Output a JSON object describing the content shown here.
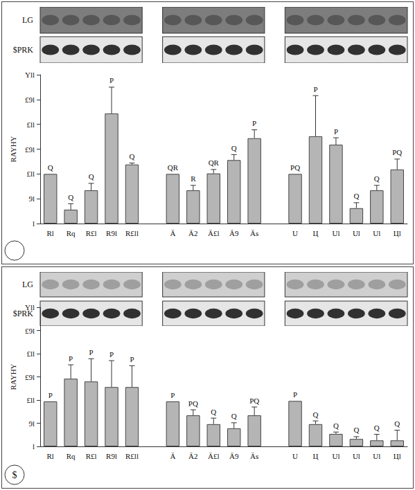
{
  "blot_labels": [
    "LG",
    "$PRK"
  ],
  "chart_data": [
    {
      "type": "bar",
      "y_label": "RAYHY",
      "categories": [
        "Rl",
        "Rq",
        "R£l",
        "R9l",
        "R£ll",
        null,
        "Ä",
        "Ä2",
        "Ä£l",
        "Ä9",
        "Äs",
        null,
        "U",
        "Ц",
        "Ul",
        "Ul",
        "Ul",
        "Цl"
      ],
      "values": [
        100,
        28,
        67,
        222,
        119,
        null,
        100,
        67,
        101,
        128,
        172,
        null,
        100,
        176,
        159,
        31,
        67,
        109
      ],
      "errors": [
        0,
        12,
        14,
        53,
        3,
        null,
        0,
        10,
        8,
        11,
        17,
        null,
        0,
        82,
        14,
        11,
        10,
        21
      ],
      "annotations": [
        "Q",
        "Q",
        "Q",
        "P",
        "Q",
        null,
        "QR",
        "R",
        "QR",
        "Q",
        "P",
        null,
        "PQ",
        "P",
        "P",
        "Q",
        "Q",
        "PQ"
      ],
      "color": "#b5b5b5",
      "ylim": [
        0,
        300
      ],
      "yticks": [
        {
          "value": 0,
          "label": "l"
        },
        {
          "value": 50,
          "label": "9l"
        },
        {
          "value": 100,
          "label": "£ll"
        },
        {
          "value": 150,
          "label": "£9l"
        },
        {
          "value": 200,
          "label": "£ll"
        },
        {
          "value": 250,
          "label": "£9l"
        },
        {
          "value": 300,
          "label": "Yll"
        }
      ],
      "grid": false
    },
    {
      "type": "bar",
      "panel_label": "$",
      "y_label": "RAYHY",
      "categories": [
        "Rl",
        "Rq",
        "R£l",
        "R9l",
        "R£ll",
        null,
        "Ä",
        "Ä2",
        "Ä£l",
        "Ä9",
        "Äs",
        null,
        "U",
        "Ц",
        "Ul",
        "Ul",
        "Ul",
        "Цl"
      ],
      "values": [
        97,
        146,
        140,
        128,
        128,
        null,
        97,
        67,
        48,
        39,
        67,
        null,
        98,
        48,
        27,
        16,
        13,
        13
      ],
      "errors": [
        0,
        30,
        49,
        57,
        46,
        null,
        0,
        12,
        13,
        12,
        18,
        null,
        0,
        7,
        4,
        5,
        13,
        22
      ],
      "annotations": [
        "P",
        "P",
        "P",
        "P",
        "P",
        null,
        "P",
        "PQ",
        "Q",
        "Q",
        "PQ",
        null,
        "P",
        "Q",
        "Q",
        "Q",
        "Q",
        "Q"
      ],
      "color": "#b5b5b5",
      "ylim": [
        0,
        300
      ],
      "yticks": [
        {
          "value": 0,
          "label": "l"
        },
        {
          "value": 50,
          "label": "9l"
        },
        {
          "value": 100,
          "label": "£ll"
        },
        {
          "value": 150,
          "label": "£9l"
        },
        {
          "value": 200,
          "label": "£ll"
        },
        {
          "value": 250,
          "label": "£9l"
        },
        {
          "value": 300,
          "label": "Yll"
        }
      ],
      "grid": false
    }
  ]
}
